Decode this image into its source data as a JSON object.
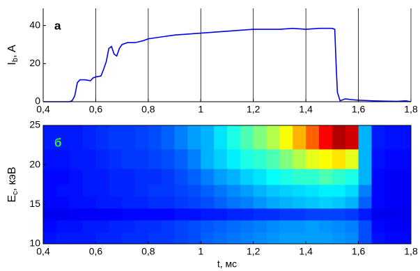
{
  "chart_data": [
    {
      "type": "line",
      "panel_label": "а",
      "ylabel": "I",
      "ylabel_sub": "b",
      "ylabel_rest": ", A",
      "xlim": [
        0.4,
        1.8
      ],
      "ylim": [
        0,
        49
      ],
      "xticks": [
        {
          "value": 0.4,
          "label": "0,4"
        },
        {
          "value": 0.6,
          "label": "0,6"
        },
        {
          "value": 0.8,
          "label": "0,8"
        },
        1,
        {
          "value": 1.2,
          "label": "1,2"
        },
        {
          "value": 1.4,
          "label": "1,4"
        },
        {
          "value": 1.6,
          "label": "1,6"
        },
        {
          "value": 1.8,
          "label": "1,8"
        }
      ],
      "yticks": [
        0,
        20,
        40
      ],
      "grid": true,
      "series": [
        {
          "color": "#0000ee",
          "x": [
            0.4,
            0.45,
            0.5,
            0.51,
            0.52,
            0.53,
            0.54,
            0.56,
            0.58,
            0.59,
            0.6,
            0.62,
            0.63,
            0.64,
            0.65,
            0.66,
            0.67,
            0.68,
            0.69,
            0.7,
            0.72,
            0.75,
            0.78,
            0.8,
            0.85,
            0.9,
            0.95,
            1.0,
            1.05,
            1.1,
            1.15,
            1.2,
            1.25,
            1.3,
            1.35,
            1.4,
            1.45,
            1.5,
            1.51,
            1.515,
            1.52,
            1.53,
            1.55,
            1.58,
            1.6,
            1.65,
            1.7,
            1.75,
            1.78,
            1.8
          ],
          "values": [
            0,
            0,
            0,
            0.5,
            3,
            10,
            11.5,
            11.5,
            11,
            12.5,
            13,
            13.5,
            17,
            21,
            28,
            29,
            25,
            24,
            28,
            30,
            31,
            31,
            32,
            33,
            34,
            35,
            35.5,
            36,
            36.5,
            37,
            37.5,
            38,
            38,
            38,
            38.5,
            38,
            38.5,
            38.5,
            38,
            20,
            5,
            0.5,
            1.5,
            1,
            0.8,
            0.5,
            0.3,
            0.2,
            0.5,
            0
          ]
        }
      ]
    },
    {
      "type": "heatmap",
      "panel_label": "б",
      "ylabel": "E",
      "ylabel_sub": "c",
      "ylabel_rest": ", кэВ",
      "xlabel": "t, мс",
      "xlim": [
        0.4,
        1.8
      ],
      "ylim": [
        10,
        25
      ],
      "colormap": "jet",
      "xticks": [
        {
          "value": 0.4,
          "label": "0,4"
        },
        {
          "value": 0.6,
          "label": "0,6"
        },
        {
          "value": 0.8,
          "label": "0,8"
        },
        1,
        {
          "value": 1.2,
          "label": "1,2"
        },
        {
          "value": 1.4,
          "label": "1,4"
        },
        {
          "value": 1.6,
          "label": "1,6"
        },
        {
          "value": 1.8,
          "label": "1,8"
        }
      ],
      "yticks": [
        10,
        15,
        20,
        25
      ],
      "xbins": [
        0.4,
        0.45,
        0.5,
        0.55,
        0.6,
        0.65,
        0.7,
        0.75,
        0.8,
        0.85,
        0.9,
        0.95,
        1.0,
        1.05,
        1.1,
        1.15,
        1.2,
        1.25,
        1.3,
        1.35,
        1.4,
        1.45,
        1.5,
        1.55,
        1.6,
        1.65,
        1.7,
        1.75,
        1.8
      ],
      "ybins": [
        10,
        11.5,
        13,
        14.5,
        16,
        17.5,
        19.5,
        22,
        25
      ],
      "z": [
        [
          0.14,
          0.15,
          0.15,
          0.15,
          0.16,
          0.16,
          0.17,
          0.17,
          0.18,
          0.18,
          0.19,
          0.2,
          0.22,
          0.23,
          0.24,
          0.25,
          0.26,
          0.27,
          0.28,
          0.28,
          0.28,
          0.28,
          0.27,
          0.26,
          0.2,
          0.14,
          0.13,
          0.13
        ],
        [
          0.13,
          0.14,
          0.14,
          0.15,
          0.15,
          0.16,
          0.16,
          0.17,
          0.17,
          0.18,
          0.19,
          0.2,
          0.21,
          0.22,
          0.23,
          0.24,
          0.25,
          0.26,
          0.27,
          0.27,
          0.28,
          0.27,
          0.26,
          0.25,
          0.2,
          0.13,
          0.12,
          0.12
        ],
        [
          0.11,
          0.11,
          0.12,
          0.12,
          0.12,
          0.12,
          0.13,
          0.13,
          0.13,
          0.13,
          0.14,
          0.14,
          0.15,
          0.15,
          0.16,
          0.16,
          0.17,
          0.17,
          0.18,
          0.18,
          0.19,
          0.19,
          0.19,
          0.18,
          0.15,
          0.11,
          0.11,
          0.11
        ],
        [
          0.13,
          0.13,
          0.14,
          0.14,
          0.15,
          0.15,
          0.16,
          0.16,
          0.17,
          0.17,
          0.18,
          0.19,
          0.2,
          0.22,
          0.24,
          0.25,
          0.27,
          0.29,
          0.3,
          0.31,
          0.32,
          0.33,
          0.32,
          0.3,
          0.22,
          0.13,
          0.12,
          0.12
        ],
        [
          0.13,
          0.14,
          0.14,
          0.15,
          0.15,
          0.16,
          0.16,
          0.17,
          0.18,
          0.18,
          0.19,
          0.2,
          0.22,
          0.24,
          0.26,
          0.28,
          0.3,
          0.32,
          0.33,
          0.34,
          0.35,
          0.36,
          0.36,
          0.34,
          0.25,
          0.13,
          0.12,
          0.12
        ],
        [
          0.13,
          0.13,
          0.14,
          0.15,
          0.15,
          0.16,
          0.16,
          0.17,
          0.17,
          0.18,
          0.2,
          0.22,
          0.25,
          0.28,
          0.3,
          0.33,
          0.35,
          0.38,
          0.4,
          0.42,
          0.42,
          0.45,
          0.42,
          0.4,
          0.3,
          0.13,
          0.12,
          0.12
        ],
        [
          0.14,
          0.14,
          0.15,
          0.15,
          0.16,
          0.17,
          0.18,
          0.18,
          0.19,
          0.2,
          0.22,
          0.25,
          0.3,
          0.33,
          0.36,
          0.4,
          0.42,
          0.45,
          0.5,
          0.55,
          0.6,
          0.62,
          0.65,
          0.6,
          0.3,
          0.14,
          0.13,
          0.13
        ],
        [
          0.15,
          0.15,
          0.15,
          0.16,
          0.17,
          0.18,
          0.18,
          0.19,
          0.2,
          0.22,
          0.25,
          0.28,
          0.3,
          0.35,
          0.4,
          0.45,
          0.5,
          0.55,
          0.62,
          0.7,
          0.78,
          0.88,
          0.95,
          0.92,
          0.3,
          0.15,
          0.14,
          0.14
        ]
      ]
    }
  ]
}
